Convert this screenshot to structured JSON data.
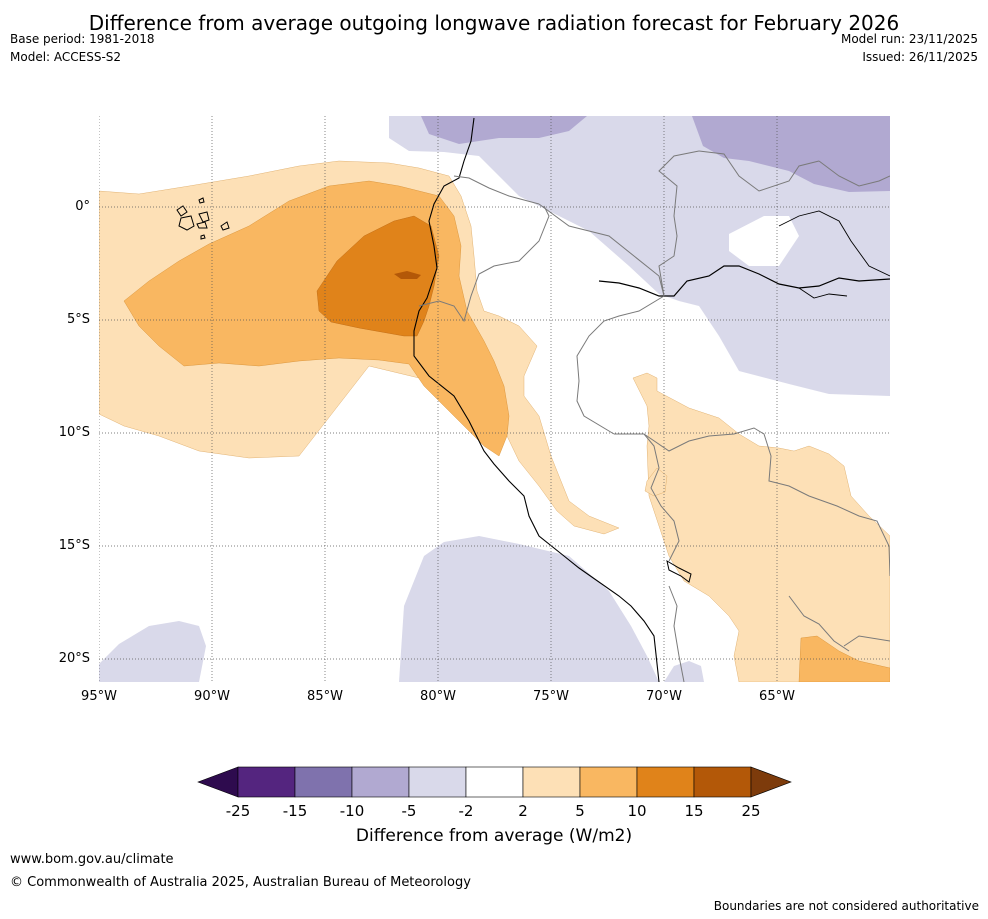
{
  "title": "Difference from average outgoing longwave radiation forecast for February 2026",
  "header": {
    "base_period": "Base period: 1981-2018",
    "model": "Model: ACCESS-S2",
    "model_run": "Model run: 23/11/2025",
    "issued": "Issued: 26/11/2025"
  },
  "map": {
    "lat_labels": [
      "0°",
      "5°S",
      "10°S",
      "15°S",
      "20°S"
    ],
    "lon_labels": [
      "95°W",
      "90°W",
      "85°W",
      "80°W",
      "75°W",
      "70°W",
      "65°W"
    ]
  },
  "legend": {
    "title": "Difference from average (W/m2)",
    "ticks": [
      "-25",
      "-15",
      "-10",
      "-5",
      "-2",
      "2",
      "5",
      "10",
      "15",
      "25"
    ],
    "colors": [
      "#2e0b4e",
      "#54257f",
      "#7f72ad",
      "#b1a9d1",
      "#d9d9ea",
      "#ffffff",
      "#fde0b6",
      "#f9b761",
      "#e0831a",
      "#b35808",
      "#7d3b0b"
    ]
  },
  "footer": {
    "url": "www.bom.gov.au/climate",
    "copyright": "© Commonwealth of Australia 2025, Australian Bureau of Meteorology",
    "disclaimer": "Boundaries are not considered authoritative"
  }
}
